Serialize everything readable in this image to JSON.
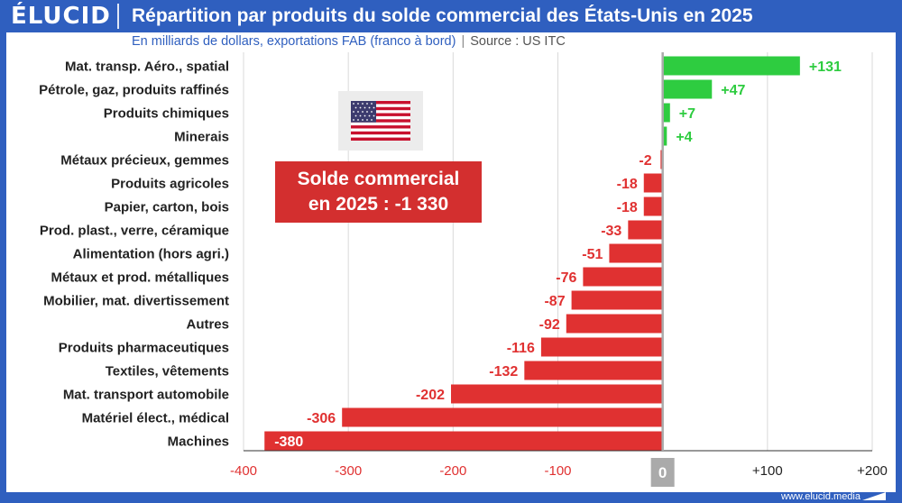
{
  "header": {
    "brand": "ÉLUCID",
    "title": "Répartition par produits du solde commercial des États-Unis en 2025",
    "subtitle_units": "En milliards de dollars, exportations FAB (franco à bord)",
    "subtitle_separator": "|",
    "subtitle_source": "Source : US ITC"
  },
  "callout": {
    "line1": "Solde commercial",
    "line2": "en 2025 : -1 330"
  },
  "footer": {
    "url": "www.elucid.media"
  },
  "colors": {
    "positive": "#2ecc40",
    "negative": "#e03131",
    "brand": "#2f5fbf",
    "zero_bar": "#aaaaaa"
  },
  "chart_data": {
    "type": "bar",
    "orientation": "horizontal",
    "title": "Répartition par produits du solde commercial des États-Unis en 2025",
    "categories": [
      "Mat. transp. Aéro., spatial",
      "Pétrole, gaz, produits raffinés",
      "Produits chimiques",
      "Minerais",
      "Métaux précieux, gemmes",
      "Produits agricoles",
      "Papier, carton, bois",
      "Prod. plast., verre, céramique",
      "Alimentation (hors agri.)",
      "Métaux et prod. métalliques",
      "Mobilier, mat. divertissement",
      "Autres",
      "Produits pharmaceutiques",
      "Textiles, vêtements",
      "Mat. transport automobile",
      "Matériel  élect., médical",
      "Machines"
    ],
    "values": [
      131,
      47,
      7,
      4,
      -2,
      -18,
      -18,
      -33,
      -51,
      -76,
      -87,
      -92,
      -116,
      -132,
      -202,
      -306,
      -380
    ],
    "value_labels": [
      "+131",
      "+47",
      "+7",
      "+4",
      "-2",
      "-18",
      "-18",
      "-33",
      "-51",
      "-76",
      "-87",
      "-92",
      "-116",
      "-132",
      "-202",
      "-306",
      "-380"
    ],
    "xlim": [
      -400,
      200
    ],
    "xticks": [
      -400,
      -300,
      -200,
      -100,
      0,
      100,
      200
    ],
    "xtick_labels": [
      "-400",
      "-300",
      "-200",
      "-100",
      "0",
      "+100",
      "+200"
    ],
    "grid": true,
    "xlabel": "",
    "ylabel": ""
  }
}
